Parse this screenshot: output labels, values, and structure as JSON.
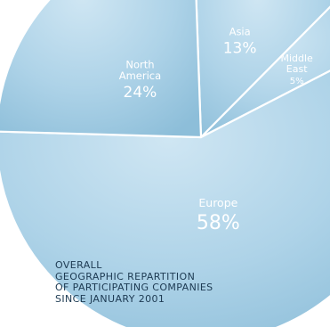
{
  "colors": {
    "slice_fill": "#a6cde3",
    "slice_border": "#ffffff",
    "label_text": "#ffffff",
    "caption_text": "#1d3a52"
  },
  "caption": {
    "line1": "OVERALL",
    "line2": "GEOGRAPHIC REPARTITION",
    "line3": "OF PARTICIPATING COMPANIES",
    "line4": "SINCE JANUARY 2001"
  },
  "chart_data": {
    "type": "pie",
    "title": "OVERALL GEOGRAPHIC REPARTITION OF PARTICIPATING COMPANIES SINCE JANUARY 2001",
    "categories": [
      "Asia",
      "Middle East",
      "Europe",
      "North America"
    ],
    "values": [
      13,
      5,
      58,
      24
    ],
    "labels": [
      {
        "name_lines": [
          "Asia"
        ],
        "value_text": "13%",
        "size": "normal"
      },
      {
        "name_lines": [
          "Middle",
          "East"
        ],
        "value_text": "5%",
        "size": "small"
      },
      {
        "name_lines": [
          "Europe"
        ],
        "value_text": "58%",
        "size": "large"
      },
      {
        "name_lines": [
          "North",
          "America"
        ],
        "value_text": "24%",
        "size": "normal"
      }
    ],
    "legend": "none"
  }
}
